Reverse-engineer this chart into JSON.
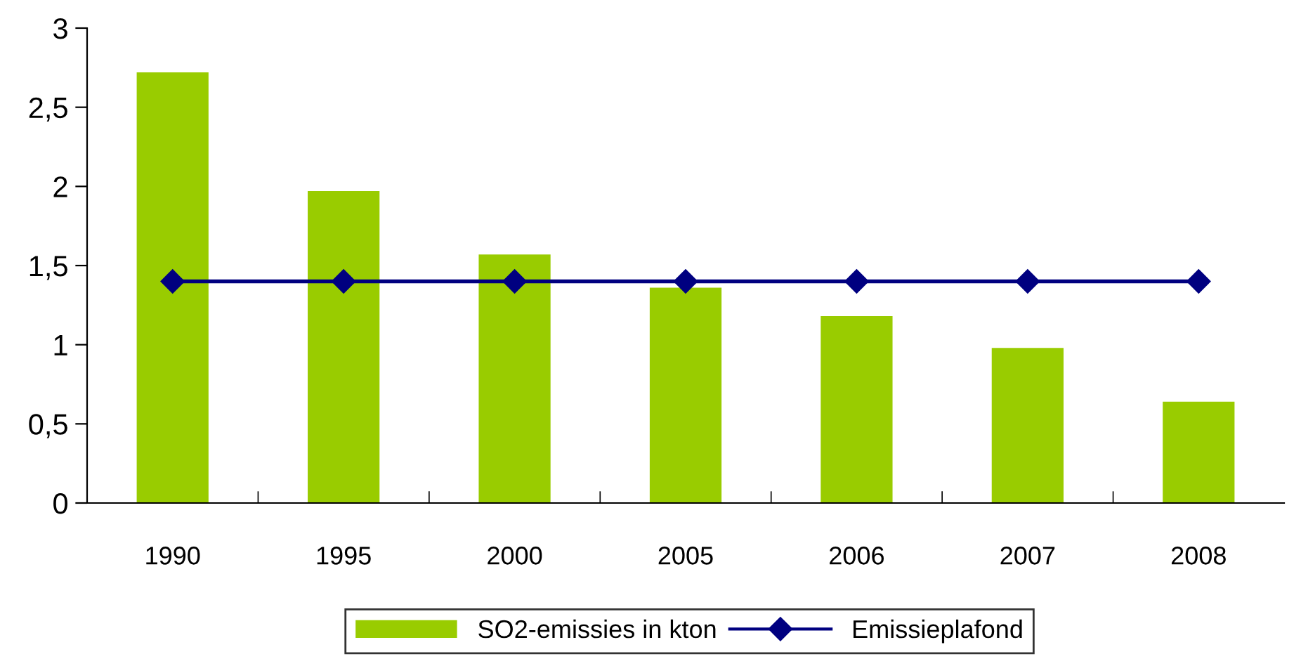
{
  "chart_data": {
    "type": "bar",
    "categories": [
      "1990",
      "1995",
      "2000",
      "2005",
      "2006",
      "2007",
      "2008"
    ],
    "series": [
      {
        "name": "SO2-emissies in kton",
        "color": "#99cc00",
        "values": [
          2.72,
          1.97,
          1.57,
          1.36,
          1.18,
          0.98,
          0.64
        ]
      },
      {
        "name": "Emissieplafond",
        "type": "line",
        "color": "#000080",
        "values": [
          1.4,
          1.4,
          1.4,
          1.4,
          1.4,
          1.4,
          1.4
        ]
      }
    ],
    "ylim": [
      0,
      3
    ],
    "yticks": [
      0,
      {
        "value": 0.5,
        "label": "0,5"
      },
      1,
      {
        "value": 1.5,
        "label": "1,5"
      },
      2,
      {
        "value": 2.5,
        "label": "2,5"
      },
      3
    ],
    "grid": false,
    "marker": "diamond",
    "legend": "bottom"
  }
}
